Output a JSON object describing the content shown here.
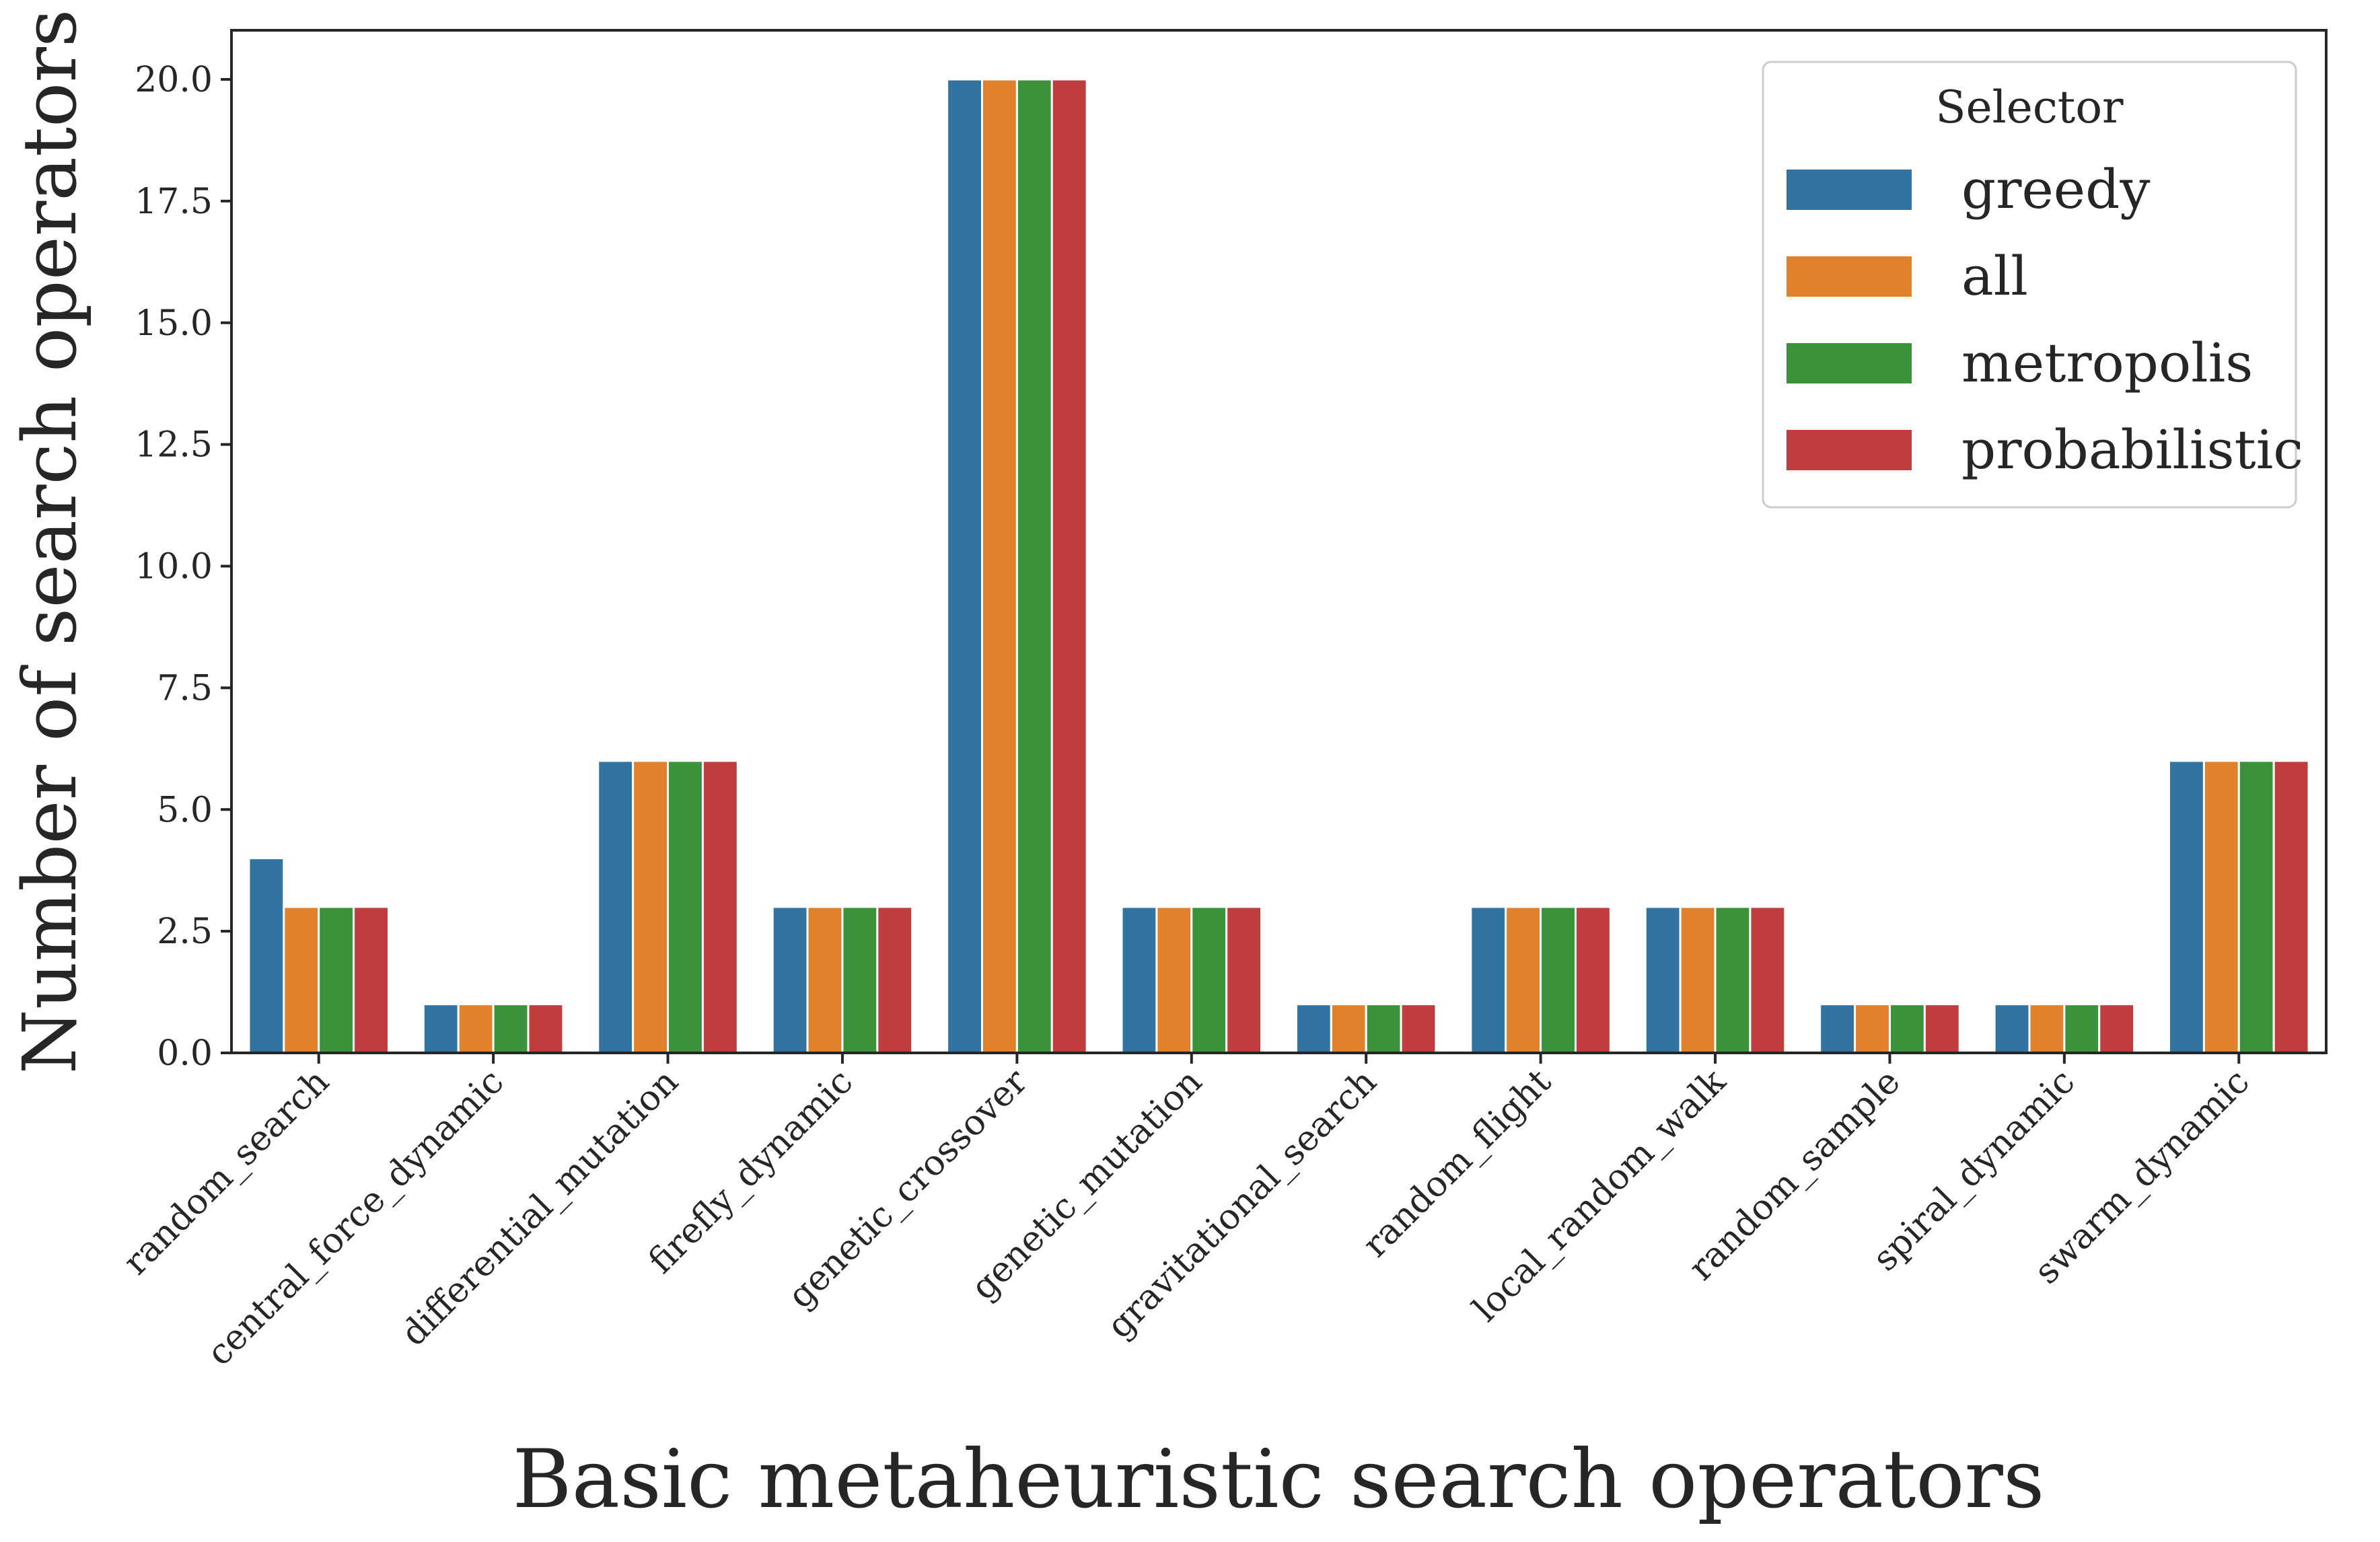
{
  "chart_data": {
    "type": "bar",
    "title": "",
    "xlabel": "Basic metaheuristic search operators",
    "ylabel": "Number of search operators",
    "ylim": [
      0,
      21
    ],
    "yticks": [
      "0.0",
      "2.5",
      "5.0",
      "7.5",
      "10.0",
      "12.5",
      "15.0",
      "17.5",
      "20.0"
    ],
    "grid": false,
    "legend": {
      "title": "Selector",
      "placement": "top-right"
    },
    "categories": [
      "random_search",
      "central_force_dynamic",
      "differential_mutation",
      "firefly_dynamic",
      "genetic_crossover",
      "genetic_mutation",
      "gravitational_search",
      "random_flight",
      "local_random_walk",
      "random_sample",
      "spiral_dynamic",
      "swarm_dynamic"
    ],
    "series": [
      {
        "name": "greedy",
        "color": "#3274a1",
        "values": [
          4,
          1,
          6,
          3,
          20,
          3,
          1,
          3,
          3,
          1,
          1,
          6
        ]
      },
      {
        "name": "all",
        "color": "#e1812c",
        "values": [
          3,
          1,
          6,
          3,
          20,
          3,
          1,
          3,
          3,
          1,
          1,
          6
        ]
      },
      {
        "name": "metropolis",
        "color": "#3a923a",
        "values": [
          3,
          1,
          6,
          3,
          20,
          3,
          1,
          3,
          3,
          1,
          1,
          6
        ]
      },
      {
        "name": "probabilistic",
        "color": "#c03d3e",
        "values": [
          3,
          1,
          6,
          3,
          20,
          3,
          1,
          3,
          3,
          1,
          1,
          6
        ]
      }
    ]
  }
}
